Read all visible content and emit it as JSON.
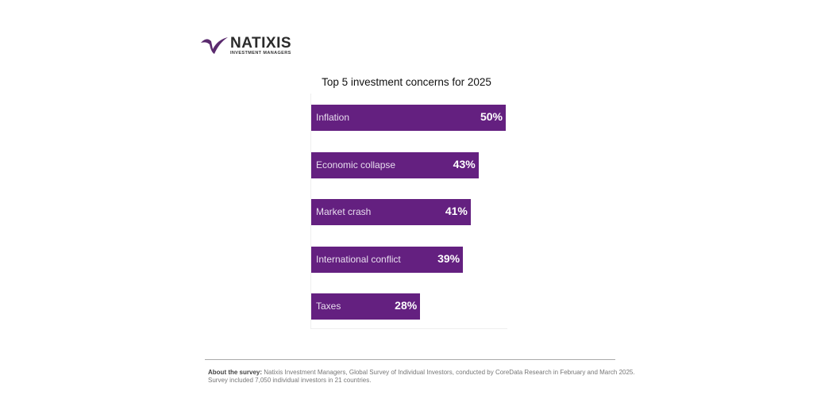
{
  "brand": {
    "name": "NATIXIS",
    "subtitle": "INVESTMENT MANAGERS",
    "color": "#642080"
  },
  "chart_data": {
    "type": "bar",
    "orientation": "horizontal",
    "title": "Top 5 investment concerns for 2025",
    "categories": [
      "Inflation",
      "Economic collapse",
      "Market crash",
      "International conflict",
      "Taxes"
    ],
    "values": [
      50,
      43,
      41,
      39,
      28
    ],
    "value_labels": [
      "50%",
      "43%",
      "41%",
      "39%",
      "28%"
    ],
    "xlim": [
      0,
      50
    ],
    "unit": "%"
  },
  "footer": {
    "label": "About the survey:",
    "text": "Natixis Investment Managers, Global Survey of Individual Investors, conducted by CoreData Research in February and March 2025.",
    "text2": "Survey  included 7,050 individual investors in 21 countries."
  }
}
